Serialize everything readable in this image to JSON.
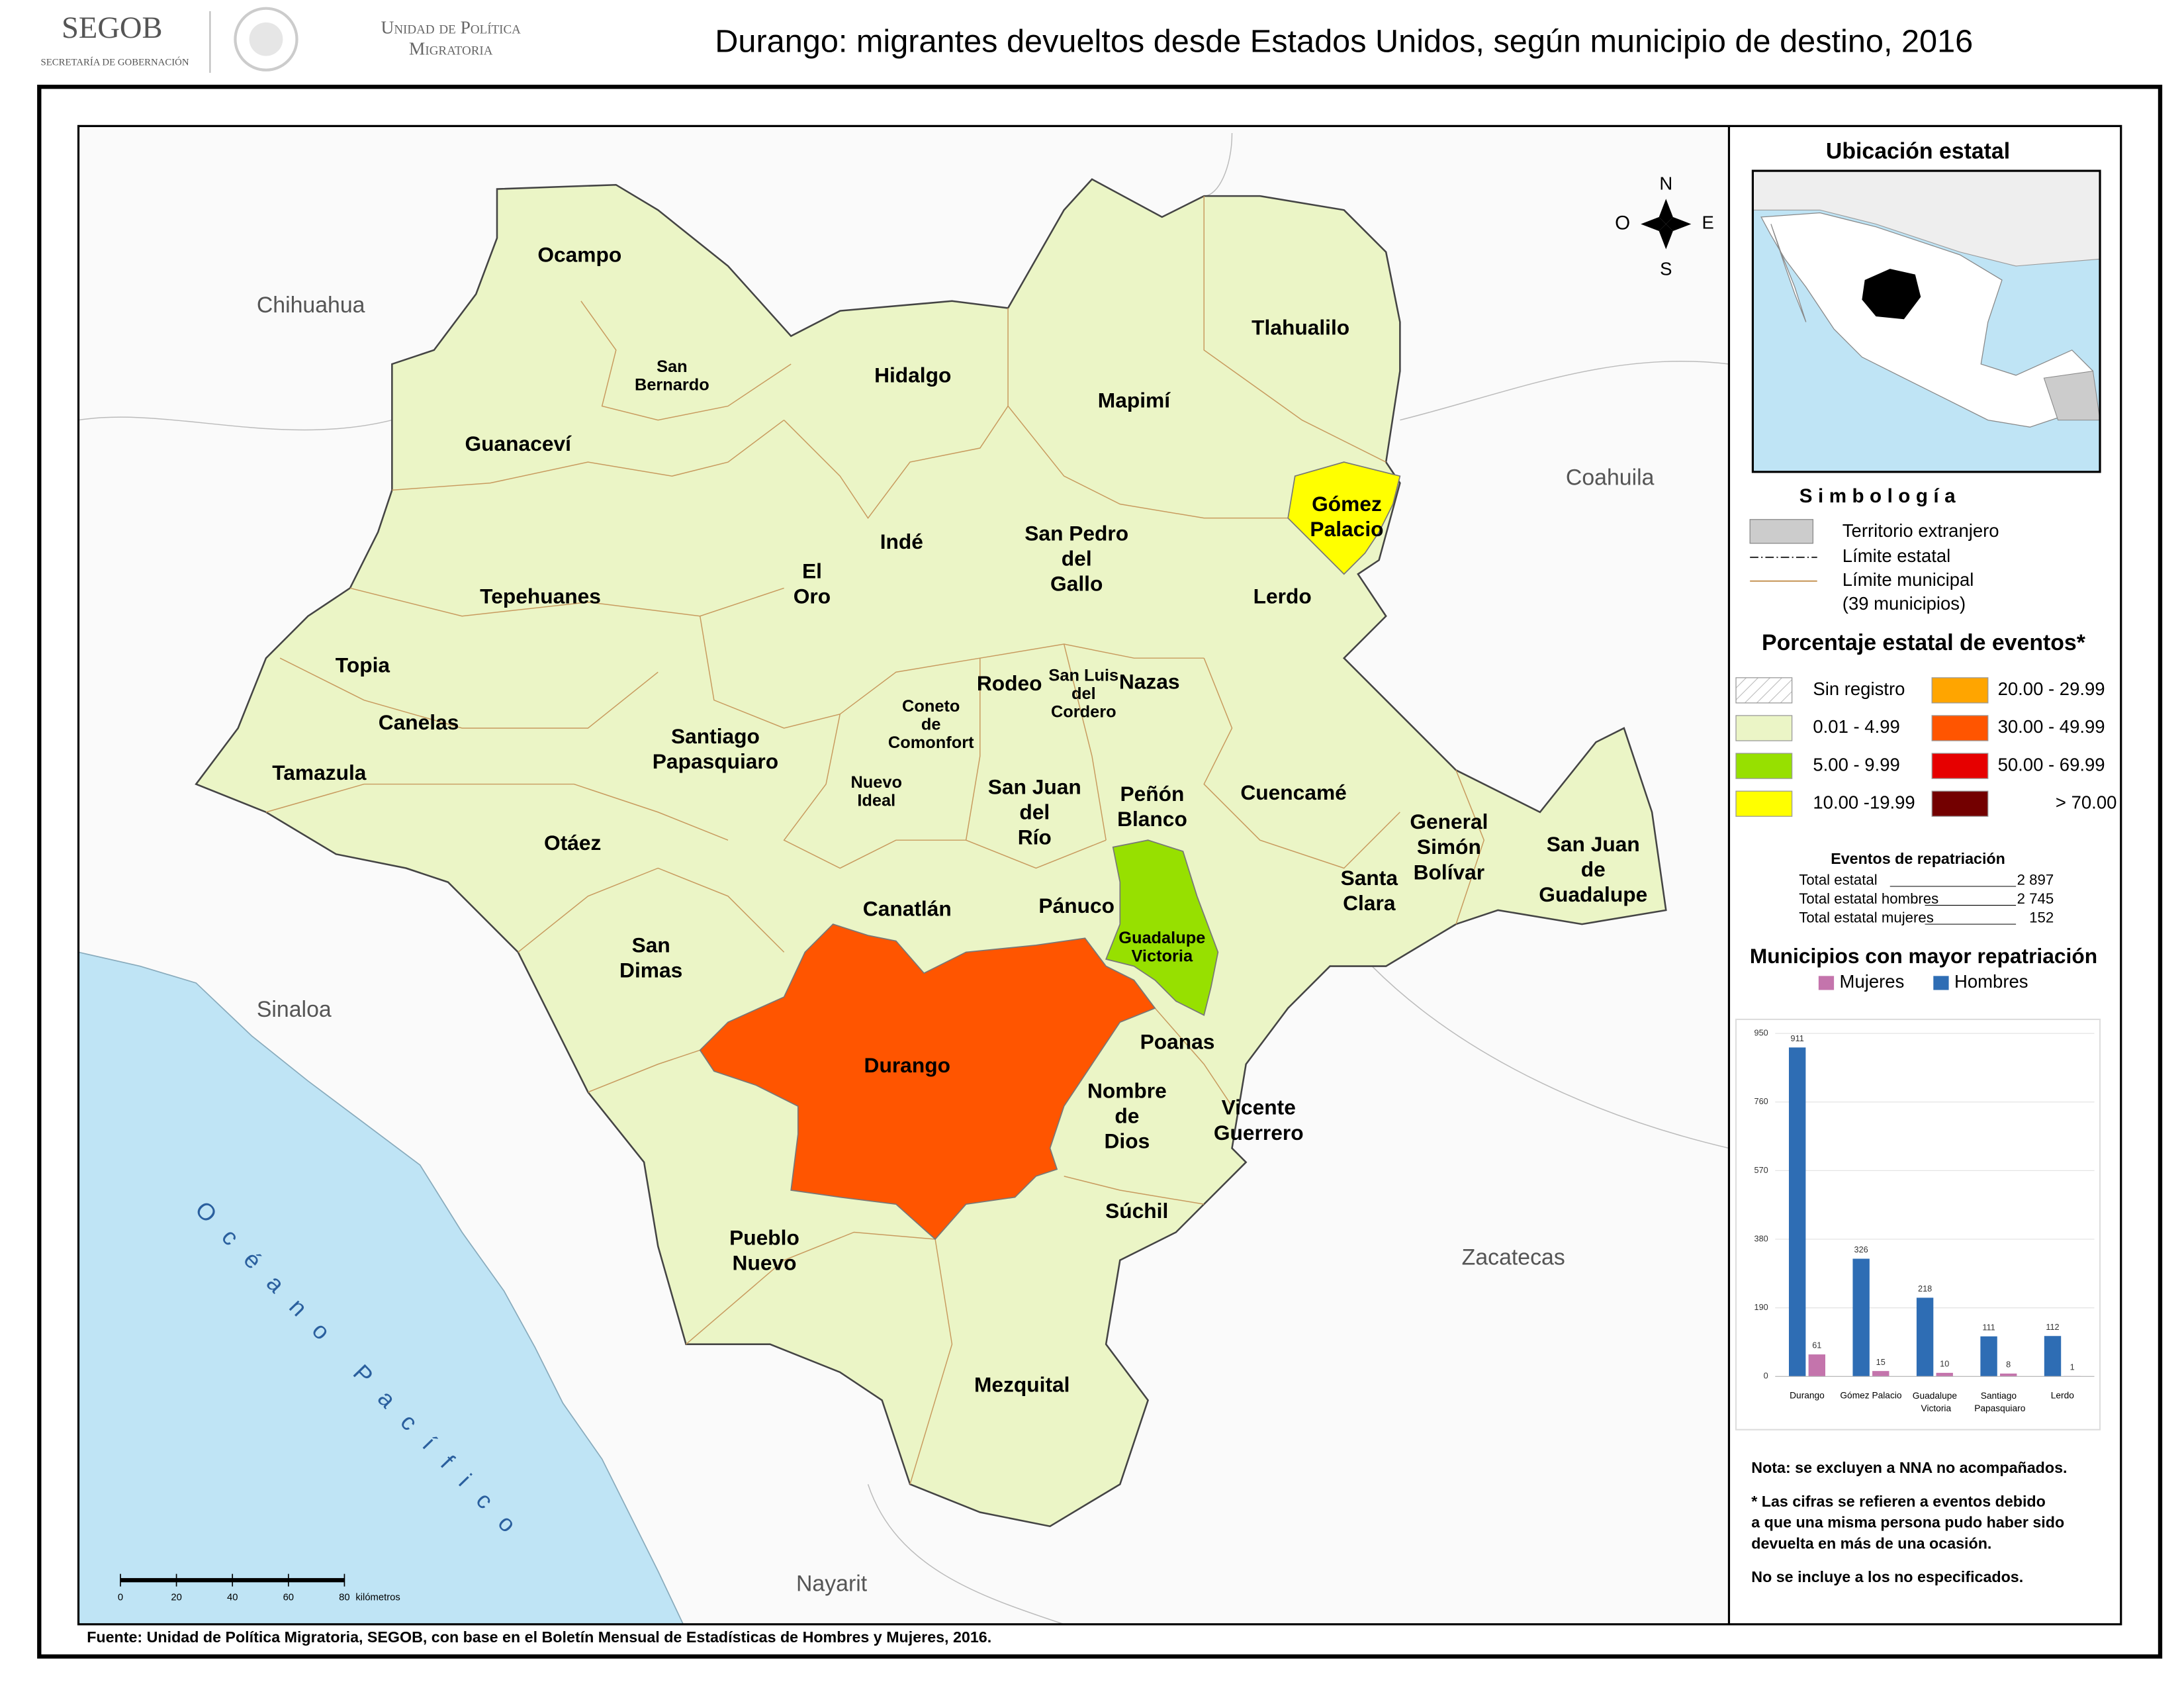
{
  "header": {
    "logo": "SEGOB",
    "logo_subtitle": "SECRETARÍA DE GOBERNACIÓN",
    "unit": [
      "Unidad de Política",
      "Migratoria"
    ],
    "title": "Durango: migrantes devueltos desde Estados Unidos, según municipio de destino, 2016"
  },
  "map": {
    "neighbors": [
      "Chihuahua",
      "Coahuila",
      "Sinaloa",
      "Zacatecas",
      "Nayarit"
    ],
    "ocean": "Océano Pacífico",
    "compass": {
      "north": "N",
      "south": "S",
      "east": "E",
      "west": "O"
    },
    "scale": {
      "ticks": [
        0,
        20,
        40,
        60,
        80
      ],
      "unit": "kilómetros"
    },
    "municipalities": [
      {
        "lines": [
          "Ocampo"
        ],
        "class": "0.01 - 4.99"
      },
      {
        "lines": [
          "San",
          "Bernardo"
        ],
        "class": "0.01 - 4.99"
      },
      {
        "lines": [
          "Hidalgo"
        ],
        "class": "0.01 - 4.99"
      },
      {
        "lines": [
          "Tlahualilo"
        ],
        "class": "0.01 - 4.99"
      },
      {
        "lines": [
          "Mapimí"
        ],
        "class": "0.01 - 4.99"
      },
      {
        "lines": [
          "Guanaceví"
        ],
        "class": "0.01 - 4.99"
      },
      {
        "lines": [
          "Gómez",
          "Palacio"
        ],
        "class": "10.00 -19.99"
      },
      {
        "lines": [
          "Indé"
        ],
        "class": "0.01 - 4.99"
      },
      {
        "lines": [
          "El",
          "Oro"
        ],
        "class": "0.01 - 4.99"
      },
      {
        "lines": [
          "San Pedro",
          "del",
          "Gallo"
        ],
        "class": "0.01 - 4.99"
      },
      {
        "lines": [
          "Tepehuanes"
        ],
        "class": "0.01 - 4.99"
      },
      {
        "lines": [
          "Lerdo"
        ],
        "class": "0.01 - 4.99"
      },
      {
        "lines": [
          "Topia"
        ],
        "class": "0.01 - 4.99"
      },
      {
        "lines": [
          "Rodeo"
        ],
        "class": "0.01 - 4.99"
      },
      {
        "lines": [
          "San Luis",
          "del",
          "Cordero"
        ],
        "class": "0.01 - 4.99"
      },
      {
        "lines": [
          "Nazas"
        ],
        "class": "0.01 - 4.99"
      },
      {
        "lines": [
          "Canelas"
        ],
        "class": "0.01 - 4.99"
      },
      {
        "lines": [
          "Coneto",
          "de",
          "Comonfort"
        ],
        "class": "0.01 - 4.99"
      },
      {
        "lines": [
          "Santiago",
          "Papasquiaro"
        ],
        "class": "0.01 - 4.99"
      },
      {
        "lines": [
          "Tamazula"
        ],
        "class": "0.01 - 4.99"
      },
      {
        "lines": [
          "Nuevo",
          "Ideal"
        ],
        "class": "0.01 - 4.99"
      },
      {
        "lines": [
          "San Juan",
          "del",
          "Río"
        ],
        "class": "0.01 - 4.99"
      },
      {
        "lines": [
          "Peñón",
          "Blanco"
        ],
        "class": "0.01 - 4.99"
      },
      {
        "lines": [
          "Cuencamé"
        ],
        "class": "0.01 - 4.99"
      },
      {
        "lines": [
          "General",
          "Simón",
          "Bolívar"
        ],
        "class": "0.01 - 4.99"
      },
      {
        "lines": [
          "San Juan",
          "de",
          "Guadalupe"
        ],
        "class": "0.01 - 4.99"
      },
      {
        "lines": [
          "Otáez"
        ],
        "class": "0.01 - 4.99"
      },
      {
        "lines": [
          "Santa",
          "Clara"
        ],
        "class": "0.01 - 4.99"
      },
      {
        "lines": [
          "Canatlán"
        ],
        "class": "0.01 - 4.99"
      },
      {
        "lines": [
          "Pánuco"
        ],
        "class": "0.01 - 4.99"
      },
      {
        "lines": [
          "Guadalupe",
          "Victoria"
        ],
        "class": "5.00 - 9.99"
      },
      {
        "lines": [
          "San",
          "Dimas"
        ],
        "class": "0.01 - 4.99"
      },
      {
        "lines": [
          "Durango"
        ],
        "class": "30.00 - 49.99"
      },
      {
        "lines": [
          "Poanas"
        ],
        "class": "0.01 - 4.99"
      },
      {
        "lines": [
          "Nombre",
          "de",
          "Dios"
        ],
        "class": "0.01 - 4.99"
      },
      {
        "lines": [
          "Vicente",
          "Guerrero"
        ],
        "class": "0.01 - 4.99"
      },
      {
        "lines": [
          "Súchil"
        ],
        "class": "0.01 - 4.99"
      },
      {
        "lines": [
          "Pueblo",
          "Nuevo"
        ],
        "class": "0.01 - 4.99"
      },
      {
        "lines": [
          "Mezquital"
        ],
        "class": "0.01 - 4.99"
      }
    ]
  },
  "sidebar": {
    "location_title": "Ubicación estatal",
    "legend_title": "Simbología",
    "legend_items": {
      "foreign": "Territorio extranjero",
      "state_limit": "Límite estatal",
      "municipal_limit": [
        "Límite municipal",
        "(39 municipios)"
      ]
    },
    "classes_title": "Porcentaje estatal de eventos*",
    "classes": [
      {
        "label": "Sin registro",
        "pattern": "hatch"
      },
      {
        "label": "0.01 - 4.99",
        "color": "#ebf5c6"
      },
      {
        "label": "5.00 - 9.99",
        "color": "#97e000"
      },
      {
        "label": "10.00 -19.99",
        "color": "#ffff00"
      },
      {
        "label": "20.00 - 29.99",
        "color": "#ffa500"
      },
      {
        "label": "30.00 - 49.99",
        "color": "#ff5500"
      },
      {
        "label": "50.00 - 69.99",
        "color": "#e60000"
      },
      {
        "label": "> 70.00",
        "color": "#730000"
      }
    ],
    "totals": {
      "title": "Eventos de repatriación",
      "rows": [
        [
          "Total estatal",
          "2 897"
        ],
        [
          "Total estatal hombres",
          "2 745"
        ],
        [
          "Total estatal mujeres",
          "152"
        ]
      ]
    },
    "notes": [
      [
        "Nota: se excluyen a NNA no acompañados."
      ],
      [
        "* Las cifras se refieren a eventos debido",
        "a que una misma persona pudo haber sido",
        "devuelta en más de una ocasión."
      ],
      [
        "No se incluye a los no especificados."
      ]
    ]
  },
  "chart_data": {
    "type": "bar",
    "title": "Municipios con mayor repatriación",
    "categories": [
      "Durango",
      "Gómez Palacio",
      "Guadalupe Victoria",
      "Santiago Papasquiaro",
      "Lerdo"
    ],
    "series": [
      {
        "name": "Mujeres",
        "color": "#c474ac",
        "values": [
          61,
          15,
          10,
          8,
          1
        ]
      },
      {
        "name": "Hombres",
        "color": "#2e6db4",
        "values": [
          911,
          326,
          218,
          111,
          112
        ]
      }
    ],
    "ylim": [
      0,
      950
    ],
    "yticks": [
      0,
      190,
      380,
      570,
      760,
      950
    ],
    "grid": true
  },
  "source": "Fuente: Unidad de Política Migratoria, SEGOB, con base en el Boletín Mensual de Estadísticas de Hombres y Mujeres, 2016."
}
